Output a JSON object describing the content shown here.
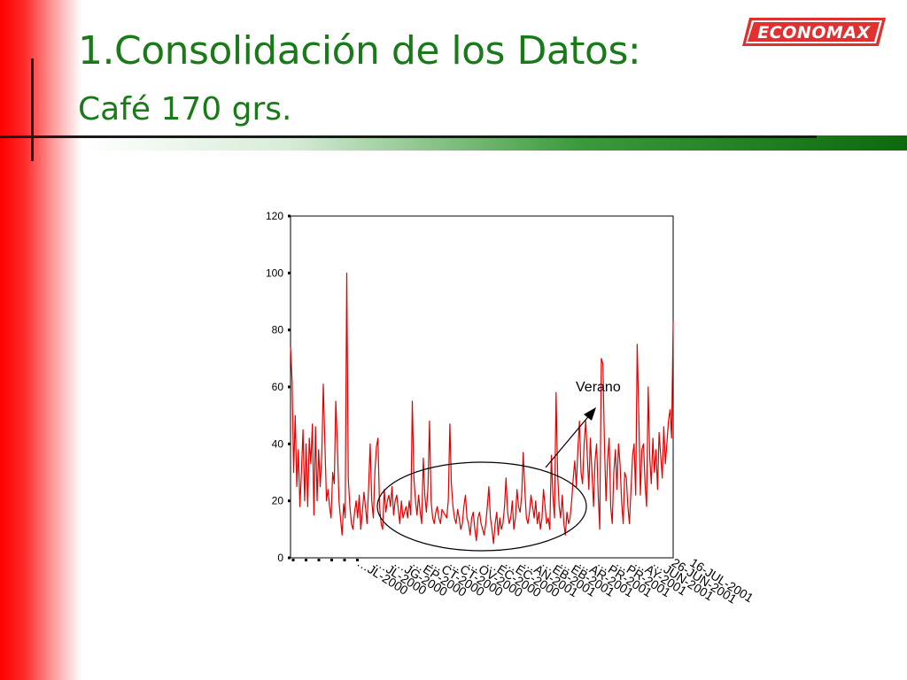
{
  "slide": {
    "title": "1.Consolidación de los Datos:",
    "subtitle": "Café 170 grs.",
    "logo_text": "ECONOMAX"
  },
  "colors": {
    "title": "#1a7a1a",
    "series_line": "#e00000",
    "side_bar": "#ff0000",
    "rule": "#0c6a0c",
    "annotation": "#000000"
  },
  "chart_data": {
    "type": "line",
    "title": "",
    "xlabel": "",
    "ylabel": "",
    "ylim": [
      0,
      120
    ],
    "yticks": [
      0,
      20,
      40,
      60,
      80,
      100,
      120
    ],
    "grid": false,
    "legend": "none",
    "xtick_labels": [
      "…JL-2000",
      "…JL-2000",
      "…JG-2000",
      "…EP-2000",
      "…CT-2000",
      "…CT-2000",
      "…OV-2000",
      "…EC-2000",
      "…EC-2000",
      "…AN-2001",
      "…EB-2001",
      "…EB-2001",
      "…AR-2001",
      "…PR-2001",
      "…PR-2001",
      "…AY-2001",
      "…JUN-2001",
      "26-JUN-2001",
      "16-JUL-2001"
    ],
    "series": [
      {
        "values": [
          74,
          62,
          30,
          50,
          25,
          38,
          18,
          30,
          45,
          20,
          40,
          18,
          42,
          33,
          47,
          15,
          46,
          20,
          38,
          25,
          36,
          61,
          40,
          20,
          24,
          18,
          14,
          30,
          26,
          55,
          40,
          20,
          14,
          8,
          19,
          14,
          100,
          28,
          18,
          12,
          10,
          16,
          20,
          14,
          22,
          10,
          16,
          23,
          18,
          12,
          25,
          40,
          20,
          14,
          30,
          39,
          42,
          18,
          12,
          10,
          24,
          16,
          20,
          22,
          18,
          25,
          15,
          20,
          22,
          17,
          12,
          20,
          14,
          16,
          18,
          14,
          20,
          15,
          55,
          28,
          20,
          15,
          22,
          16,
          12,
          35,
          22,
          16,
          25,
          48,
          20,
          14,
          12,
          16,
          18,
          14,
          12,
          17,
          16,
          15,
          14,
          20,
          47,
          26,
          18,
          14,
          12,
          17,
          14,
          10,
          12,
          18,
          22,
          14,
          12,
          8,
          14,
          16,
          10,
          6,
          14,
          16,
          12,
          10,
          8,
          12,
          18,
          25,
          14,
          10,
          5,
          12,
          16,
          8,
          14,
          10,
          12,
          18,
          28,
          16,
          12,
          14,
          20,
          10,
          14,
          24,
          18,
          16,
          22,
          37,
          24,
          14,
          12,
          16,
          22,
          18,
          14,
          20,
          12,
          16,
          10,
          14,
          24,
          18,
          12,
          14,
          10,
          36,
          22,
          14,
          58,
          30,
          18,
          14,
          22,
          12,
          8,
          16,
          12,
          14,
          20,
          28,
          34,
          25,
          38,
          48,
          30,
          26,
          40,
          48,
          36,
          24,
          42,
          30,
          18,
          34,
          40,
          22,
          10,
          70,
          68,
          40,
          20,
          34,
          42,
          18,
          12,
          30,
          38,
          24,
          40,
          33,
          20,
          12,
          30,
          28,
          18,
          12,
          24,
          36,
          40,
          22,
          75,
          50,
          22,
          38,
          40,
          26,
          18,
          60,
          35,
          26,
          42,
          30,
          38,
          24,
          44,
          36,
          28,
          46,
          33,
          40,
          48,
          52,
          42,
          83
        ]
      }
    ],
    "annotations": [
      {
        "text": "Verano"
      }
    ]
  }
}
